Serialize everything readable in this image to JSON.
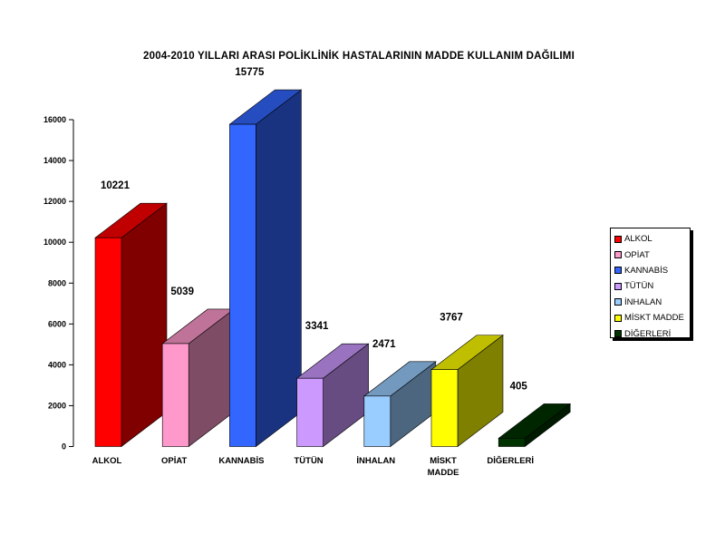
{
  "chart_data": {
    "type": "bar",
    "title": "2004-2010 YILLARI ARASI POLİKLİNİK HASTALARININ MADDE  KULLANIM DAĞILIMI",
    "xlabel": "",
    "ylabel": "",
    "ylim": [
      0,
      16000
    ],
    "yticks": [
      "0",
      "2000",
      "4000",
      "6000",
      "8000",
      "10000",
      "12000",
      "14000",
      "16000"
    ],
    "categories": [
      "ALKOL",
      "OPİAT",
      "KANNABİS",
      "TÜTÜN",
      "İNHALAN",
      "MİSKT MADDE",
      "DİĞERLERİ"
    ],
    "category_labels": [
      [
        "ALKOL"
      ],
      [
        "OPİAT"
      ],
      [
        "KANNABİS"
      ],
      [
        "TÜTÜN"
      ],
      [
        "İNHALAN"
      ],
      [
        "MİSKT",
        "MADDE"
      ],
      [
        "DİĞERLERİ"
      ]
    ],
    "values": [
      10221,
      5039,
      15775,
      3341,
      2471,
      3767,
      405
    ],
    "colors": [
      "#ff0000",
      "#ff99cc",
      "#3366ff",
      "#cc99ff",
      "#99ccff",
      "#ffff00",
      "#003300"
    ],
    "side_colors": [
      "#800000",
      "#7f4c66",
      "#1a3380",
      "#664c80",
      "#4c6680",
      "#808000",
      "#001a00"
    ],
    "top_colors": [
      "#c00000",
      "#c07399",
      "#264dbf",
      "#9973bf",
      "#7399bf",
      "#bfbf00",
      "#002600"
    ],
    "grid": false,
    "legend": "right"
  }
}
